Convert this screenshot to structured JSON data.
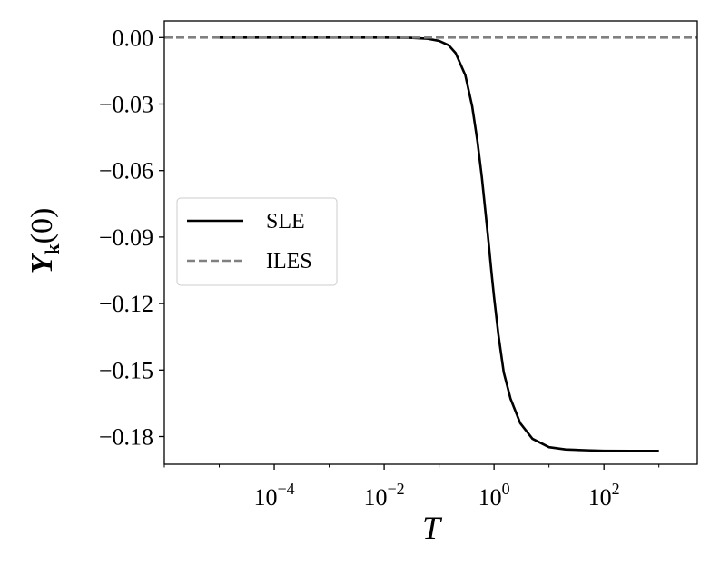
{
  "chart_data": {
    "type": "line",
    "title": "",
    "xlabel": "T",
    "ylabel_main": "Y",
    "ylabel_sub": "k",
    "ylabel_arg": "(0)",
    "x_scale": "log",
    "xlim": [
      1e-06,
      5000
    ],
    "ylim": [
      -0.1925,
      0.0075
    ],
    "y_ticks": [
      0.0,
      -0.03,
      -0.06,
      -0.09,
      -0.12,
      -0.15,
      -0.18
    ],
    "y_tick_labels": [
      "0.00",
      "−0.03",
      "−0.06",
      "−0.09",
      "−0.12",
      "−0.15",
      "−0.18"
    ],
    "x_ticks": [
      {
        "value": 0.0001,
        "base": "10",
        "exp": "−4"
      },
      {
        "value": 0.01,
        "base": "10",
        "exp": "−2"
      },
      {
        "value": 1,
        "base": "10",
        "exp": "0"
      },
      {
        "value": 100,
        "base": "10",
        "exp": "2"
      }
    ],
    "legend_position": "center-left",
    "series": [
      {
        "name": "SLE",
        "color": "#000000",
        "style": "solid",
        "x": [
          1e-05,
          0.0001,
          0.001,
          0.01,
          0.03,
          0.06,
          0.1,
          0.15,
          0.2,
          0.3,
          0.4,
          0.5,
          0.6,
          0.7,
          0.8,
          0.9,
          1.0,
          1.2,
          1.5,
          2,
          3,
          5,
          10,
          20,
          50,
          100,
          300,
          1000
        ],
        "y": [
          0.0,
          0.0,
          0.0,
          0.0,
          -0.0001,
          -0.0005,
          -0.0015,
          -0.0035,
          -0.007,
          -0.017,
          -0.031,
          -0.047,
          -0.063,
          -0.079,
          -0.093,
          -0.106,
          -0.117,
          -0.134,
          -0.151,
          -0.163,
          -0.174,
          -0.181,
          -0.1848,
          -0.1858,
          -0.1862,
          -0.1864,
          -0.1865,
          -0.1865
        ]
      },
      {
        "name": "ILES",
        "color": "#808080",
        "style": "dashed",
        "x": [
          1e-06,
          5000
        ],
        "y": [
          0.0,
          0.0
        ]
      }
    ]
  }
}
